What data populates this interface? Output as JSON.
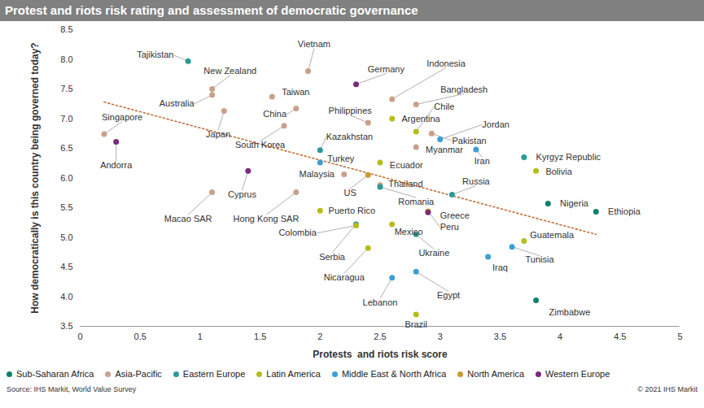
{
  "chart_data": {
    "type": "scatter",
    "title": "Protest and riots risk rating and assessment of democratic governance",
    "x_label": "Protests  and riots risk score",
    "y_label": "How democratically is this country being governed today?",
    "xlim": [
      0,
      5
    ],
    "xticks": [
      0,
      0.5,
      1,
      1.5,
      2,
      2.5,
      3,
      3.5,
      4,
      4.5,
      5
    ],
    "ylim": [
      3.5,
      8.5
    ],
    "yticks": [
      3.5,
      {
        "value": 4,
        "label": "4.0"
      },
      4.5,
      {
        "value": 5,
        "label": "5.0"
      },
      5.5,
      {
        "value": 6,
        "label": "6.0"
      },
      6.5,
      {
        "value": 7,
        "label": "7.0"
      },
      7.5,
      {
        "value": 8,
        "label": "8.0"
      },
      8.5
    ],
    "grid": false,
    "legend": "bottom",
    "marker": "circle",
    "series": [
      {
        "name": "Sub-Saharan Africa",
        "color": "#13806f",
        "labels": [
          "Nigeria",
          "Ethiopia",
          "Zimbabwe"
        ],
        "x": [
          3.9,
          4.3,
          3.8
        ],
        "y": [
          5.57,
          5.43,
          3.94
        ]
      },
      {
        "name": "Asia-Pacific",
        "color": "#c9a08a",
        "labels": [
          "Vietnam",
          "New Zealand",
          "Australia",
          "Taiwan",
          "Indonesia",
          "Bangladesh",
          "China",
          "Japan",
          "Philippines",
          "Singapore",
          "South Korea",
          "Myanmar",
          "Pakistan",
          "Malaysia",
          "Thailand",
          "Macao SAR",
          "Hong Kong SAR"
        ],
        "x": [
          1.9,
          1.1,
          1.1,
          1.6,
          2.6,
          2.8,
          1.8,
          1.2,
          2.4,
          0.2,
          1.7,
          2.8,
          2.93,
          2.2,
          2.5,
          1.1,
          1.8
        ],
        "y": [
          7.8,
          7.5,
          7.4,
          7.37,
          7.33,
          7.24,
          7.17,
          7.13,
          6.93,
          6.74,
          6.88,
          6.52,
          6.75,
          6.06,
          5.88,
          5.76,
          5.76
        ]
      },
      {
        "name": "Eastern Europe",
        "color": "#2b9a9a",
        "labels": [
          "Tajikistan",
          "Kazakhstan",
          "Kyrgyz Republic",
          "Romania",
          "Russia",
          "Serbia",
          "Ukraine"
        ],
        "x": [
          0.9,
          2.0,
          3.7,
          2.5,
          3.1,
          2.3,
          2.8
        ],
        "y": [
          7.97,
          6.47,
          6.35,
          5.85,
          5.72,
          5.22,
          5.05
        ]
      },
      {
        "name": "Latin America",
        "color": "#b5bd1c",
        "labels": [
          "Argentina",
          "Chile",
          "Bolivia",
          "Ecuador",
          "Puerto Rico",
          "Peru",
          "Colombia",
          "Mexico",
          "Guatemala",
          "Nicaragua",
          "Brazil"
        ],
        "x": [
          2.6,
          2.8,
          3.8,
          2.5,
          2.0,
          2.9,
          2.3,
          2.6,
          3.7,
          2.4,
          2.8
        ],
        "y": [
          7.0,
          6.78,
          6.12,
          6.26,
          5.45,
          5.44,
          5.2,
          5.22,
          4.94,
          4.82,
          3.7
        ]
      },
      {
        "name": "Middle East & North Africa",
        "color": "#3a9fd5",
        "labels": [
          "Jordan",
          "Iran",
          "Turkey",
          "Tunisia",
          "Iraq",
          "Egypt",
          "Lebanon"
        ],
        "x": [
          3.0,
          3.3,
          2.0,
          3.6,
          3.4,
          2.8,
          2.6
        ],
        "y": [
          6.65,
          6.48,
          6.26,
          4.84,
          4.67,
          4.42,
          4.32
        ]
      },
      {
        "name": "North America",
        "color": "#c99a2e",
        "labels": [
          "US"
        ],
        "x": [
          2.4
        ],
        "y": [
          6.05
        ]
      },
      {
        "name": "Western Europe",
        "color": "#7b2a7e",
        "labels": [
          "Germany",
          "Andorra",
          "Cyprus",
          "Greece"
        ],
        "x": [
          2.3,
          0.3,
          1.4,
          2.9
        ],
        "y": [
          7.58,
          6.61,
          6.12,
          5.42
        ]
      }
    ],
    "trendline": {
      "x": [
        0.2,
        4.3
      ],
      "y": [
        7.28,
        5.05
      ],
      "color": "#c0703a",
      "line_style": "dotted"
    },
    "source": "Source: IHS Markit, World Value Survey",
    "copyright": "© 2021 IHS Markit"
  }
}
